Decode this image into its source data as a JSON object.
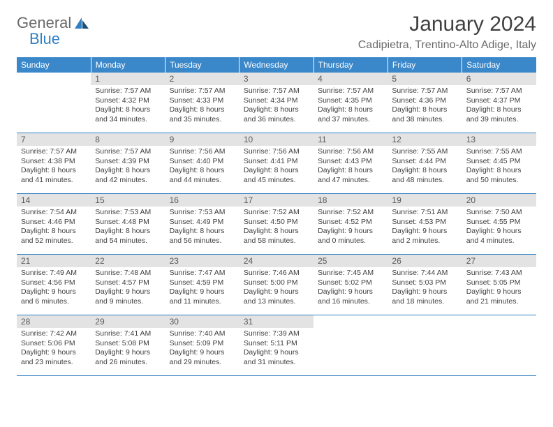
{
  "brand": {
    "part1": "General",
    "part2": "Blue"
  },
  "title": "January 2024",
  "location": "Cadipietra, Trentino-Alto Adige, Italy",
  "weekdays": [
    "Sunday",
    "Monday",
    "Tuesday",
    "Wednesday",
    "Thursday",
    "Friday",
    "Saturday"
  ],
  "colors": {
    "header_bg": "#3a87c9",
    "header_fg": "#ffffff",
    "daynum_bg": "#e3e3e3",
    "rule": "#2f7fc2",
    "logo_gray": "#6a6a6a",
    "logo_blue": "#2f7fc2"
  },
  "weeks": [
    [
      {
        "day": "",
        "sunrise": "",
        "sunset": "",
        "daylight": ""
      },
      {
        "day": "1",
        "sunrise": "Sunrise: 7:57 AM",
        "sunset": "Sunset: 4:32 PM",
        "daylight": "Daylight: 8 hours and 34 minutes."
      },
      {
        "day": "2",
        "sunrise": "Sunrise: 7:57 AM",
        "sunset": "Sunset: 4:33 PM",
        "daylight": "Daylight: 8 hours and 35 minutes."
      },
      {
        "day": "3",
        "sunrise": "Sunrise: 7:57 AM",
        "sunset": "Sunset: 4:34 PM",
        "daylight": "Daylight: 8 hours and 36 minutes."
      },
      {
        "day": "4",
        "sunrise": "Sunrise: 7:57 AM",
        "sunset": "Sunset: 4:35 PM",
        "daylight": "Daylight: 8 hours and 37 minutes."
      },
      {
        "day": "5",
        "sunrise": "Sunrise: 7:57 AM",
        "sunset": "Sunset: 4:36 PM",
        "daylight": "Daylight: 8 hours and 38 minutes."
      },
      {
        "day": "6",
        "sunrise": "Sunrise: 7:57 AM",
        "sunset": "Sunset: 4:37 PM",
        "daylight": "Daylight: 8 hours and 39 minutes."
      }
    ],
    [
      {
        "day": "7",
        "sunrise": "Sunrise: 7:57 AM",
        "sunset": "Sunset: 4:38 PM",
        "daylight": "Daylight: 8 hours and 41 minutes."
      },
      {
        "day": "8",
        "sunrise": "Sunrise: 7:57 AM",
        "sunset": "Sunset: 4:39 PM",
        "daylight": "Daylight: 8 hours and 42 minutes."
      },
      {
        "day": "9",
        "sunrise": "Sunrise: 7:56 AM",
        "sunset": "Sunset: 4:40 PM",
        "daylight": "Daylight: 8 hours and 44 minutes."
      },
      {
        "day": "10",
        "sunrise": "Sunrise: 7:56 AM",
        "sunset": "Sunset: 4:41 PM",
        "daylight": "Daylight: 8 hours and 45 minutes."
      },
      {
        "day": "11",
        "sunrise": "Sunrise: 7:56 AM",
        "sunset": "Sunset: 4:43 PM",
        "daylight": "Daylight: 8 hours and 47 minutes."
      },
      {
        "day": "12",
        "sunrise": "Sunrise: 7:55 AM",
        "sunset": "Sunset: 4:44 PM",
        "daylight": "Daylight: 8 hours and 48 minutes."
      },
      {
        "day": "13",
        "sunrise": "Sunrise: 7:55 AM",
        "sunset": "Sunset: 4:45 PM",
        "daylight": "Daylight: 8 hours and 50 minutes."
      }
    ],
    [
      {
        "day": "14",
        "sunrise": "Sunrise: 7:54 AM",
        "sunset": "Sunset: 4:46 PM",
        "daylight": "Daylight: 8 hours and 52 minutes."
      },
      {
        "day": "15",
        "sunrise": "Sunrise: 7:53 AM",
        "sunset": "Sunset: 4:48 PM",
        "daylight": "Daylight: 8 hours and 54 minutes."
      },
      {
        "day": "16",
        "sunrise": "Sunrise: 7:53 AM",
        "sunset": "Sunset: 4:49 PM",
        "daylight": "Daylight: 8 hours and 56 minutes."
      },
      {
        "day": "17",
        "sunrise": "Sunrise: 7:52 AM",
        "sunset": "Sunset: 4:50 PM",
        "daylight": "Daylight: 8 hours and 58 minutes."
      },
      {
        "day": "18",
        "sunrise": "Sunrise: 7:52 AM",
        "sunset": "Sunset: 4:52 PM",
        "daylight": "Daylight: 9 hours and 0 minutes."
      },
      {
        "day": "19",
        "sunrise": "Sunrise: 7:51 AM",
        "sunset": "Sunset: 4:53 PM",
        "daylight": "Daylight: 9 hours and 2 minutes."
      },
      {
        "day": "20",
        "sunrise": "Sunrise: 7:50 AM",
        "sunset": "Sunset: 4:55 PM",
        "daylight": "Daylight: 9 hours and 4 minutes."
      }
    ],
    [
      {
        "day": "21",
        "sunrise": "Sunrise: 7:49 AM",
        "sunset": "Sunset: 4:56 PM",
        "daylight": "Daylight: 9 hours and 6 minutes."
      },
      {
        "day": "22",
        "sunrise": "Sunrise: 7:48 AM",
        "sunset": "Sunset: 4:57 PM",
        "daylight": "Daylight: 9 hours and 9 minutes."
      },
      {
        "day": "23",
        "sunrise": "Sunrise: 7:47 AM",
        "sunset": "Sunset: 4:59 PM",
        "daylight": "Daylight: 9 hours and 11 minutes."
      },
      {
        "day": "24",
        "sunrise": "Sunrise: 7:46 AM",
        "sunset": "Sunset: 5:00 PM",
        "daylight": "Daylight: 9 hours and 13 minutes."
      },
      {
        "day": "25",
        "sunrise": "Sunrise: 7:45 AM",
        "sunset": "Sunset: 5:02 PM",
        "daylight": "Daylight: 9 hours and 16 minutes."
      },
      {
        "day": "26",
        "sunrise": "Sunrise: 7:44 AM",
        "sunset": "Sunset: 5:03 PM",
        "daylight": "Daylight: 9 hours and 18 minutes."
      },
      {
        "day": "27",
        "sunrise": "Sunrise: 7:43 AM",
        "sunset": "Sunset: 5:05 PM",
        "daylight": "Daylight: 9 hours and 21 minutes."
      }
    ],
    [
      {
        "day": "28",
        "sunrise": "Sunrise: 7:42 AM",
        "sunset": "Sunset: 5:06 PM",
        "daylight": "Daylight: 9 hours and 23 minutes."
      },
      {
        "day": "29",
        "sunrise": "Sunrise: 7:41 AM",
        "sunset": "Sunset: 5:08 PM",
        "daylight": "Daylight: 9 hours and 26 minutes."
      },
      {
        "day": "30",
        "sunrise": "Sunrise: 7:40 AM",
        "sunset": "Sunset: 5:09 PM",
        "daylight": "Daylight: 9 hours and 29 minutes."
      },
      {
        "day": "31",
        "sunrise": "Sunrise: 7:39 AM",
        "sunset": "Sunset: 5:11 PM",
        "daylight": "Daylight: 9 hours and 31 minutes."
      },
      {
        "day": "",
        "sunrise": "",
        "sunset": "",
        "daylight": ""
      },
      {
        "day": "",
        "sunrise": "",
        "sunset": "",
        "daylight": ""
      },
      {
        "day": "",
        "sunrise": "",
        "sunset": "",
        "daylight": ""
      }
    ]
  ]
}
